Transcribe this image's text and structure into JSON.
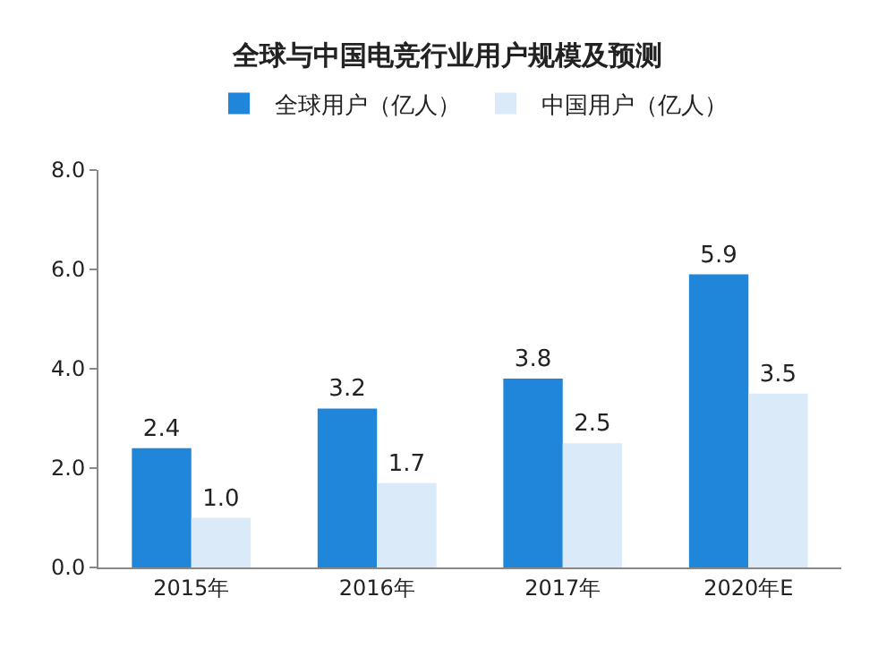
{
  "chart_data": {
    "type": "bar",
    "title": "全球与中国电竞行业用户规模及预测",
    "categories": [
      "2015年",
      "2016年",
      "2017年",
      "2020年E"
    ],
    "series": [
      {
        "name": "全球用户（亿人）",
        "color": "#1f86d9",
        "values": [
          2.4,
          3.2,
          3.8,
          5.9
        ],
        "value_labels": [
          "2.4",
          "3.2",
          "3.8",
          "5.9"
        ]
      },
      {
        "name": "中国用户（亿人）",
        "color": "#dbeaf9",
        "values": [
          1.0,
          1.7,
          2.5,
          3.5
        ],
        "value_labels": [
          "1.0",
          "1.7",
          "2.5",
          "3.5"
        ]
      }
    ],
    "ylim": [
      0,
      8
    ],
    "yticks": [
      {
        "value": 0,
        "label": "0.0"
      },
      {
        "value": 2,
        "label": "2.0"
      },
      {
        "value": 4,
        "label": "4.0"
      },
      {
        "value": 6,
        "label": "6.0"
      },
      {
        "value": 8,
        "label": "8.0"
      }
    ],
    "legend": "top"
  }
}
